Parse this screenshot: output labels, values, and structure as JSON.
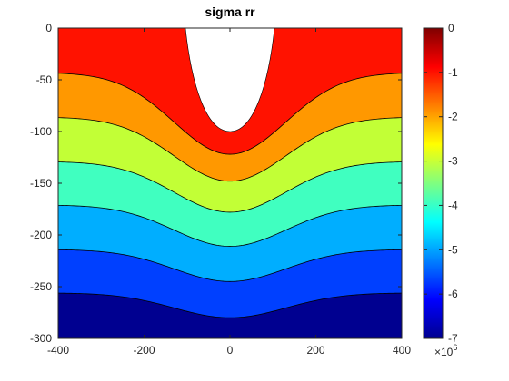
{
  "chart_data": {
    "type": "contourf",
    "title": "sigma rr",
    "xlim": [
      -400,
      400
    ],
    "ylim": [
      -300,
      0
    ],
    "x_ticks": [
      -400,
      -200,
      0,
      200,
      400
    ],
    "y_ticks": [
      0,
      -50,
      -100,
      -150,
      -200,
      -250,
      -300
    ],
    "x_tick_labels": [
      "-400",
      "-200",
      "0",
      "200",
      "400"
    ],
    "y_tick_labels": [
      "0",
      "-50",
      "-100",
      "-150",
      "-200",
      "-250",
      "-300"
    ],
    "hole": {
      "center_x": 0,
      "top_y": 0,
      "bottom_y": -100,
      "half_width_at_top": 100
    },
    "contour_levels": [
      0,
      -1,
      -2,
      -3,
      -4,
      -5,
      -6,
      -7
    ],
    "contour_level_units": "x10^6",
    "bands": [
      {
        "upper_level": 0,
        "lower_level": -1,
        "color": "#ff1200",
        "edge_y": -43,
        "center_y": -122
      },
      {
        "upper_level": -1,
        "lower_level": -2,
        "color": "#ff9800",
        "edge_y": -86,
        "center_y": -148
      },
      {
        "upper_level": -2,
        "lower_level": -3,
        "color": "#c2ff36",
        "edge_y": -129,
        "center_y": -178
      },
      {
        "upper_level": -3,
        "lower_level": -4,
        "color": "#40ffc0",
        "edge_y": -171,
        "center_y": -211
      },
      {
        "upper_level": -4,
        "lower_level": -5,
        "color": "#00aeff",
        "edge_y": -214,
        "center_y": -245
      },
      {
        "upper_level": -5,
        "lower_level": -6,
        "color": "#0040ff",
        "edge_y": -256,
        "center_y": -280
      },
      {
        "upper_level": -6,
        "lower_level": -7,
        "color": "#000090",
        "edge_y": -300,
        "center_y": -300
      }
    ],
    "colorbar": {
      "colormap": "jet",
      "range": [
        -7,
        0
      ],
      "ticks": [
        0,
        -1,
        -2,
        -3,
        -4,
        -5,
        -6,
        -7
      ],
      "tick_labels": [
        "0",
        "-1",
        "-2",
        "-3",
        "-4",
        "-5",
        "-6",
        "-7"
      ],
      "multiplier_base": "×10",
      "multiplier_exponent": "6",
      "placement": "right"
    },
    "grid": false
  }
}
